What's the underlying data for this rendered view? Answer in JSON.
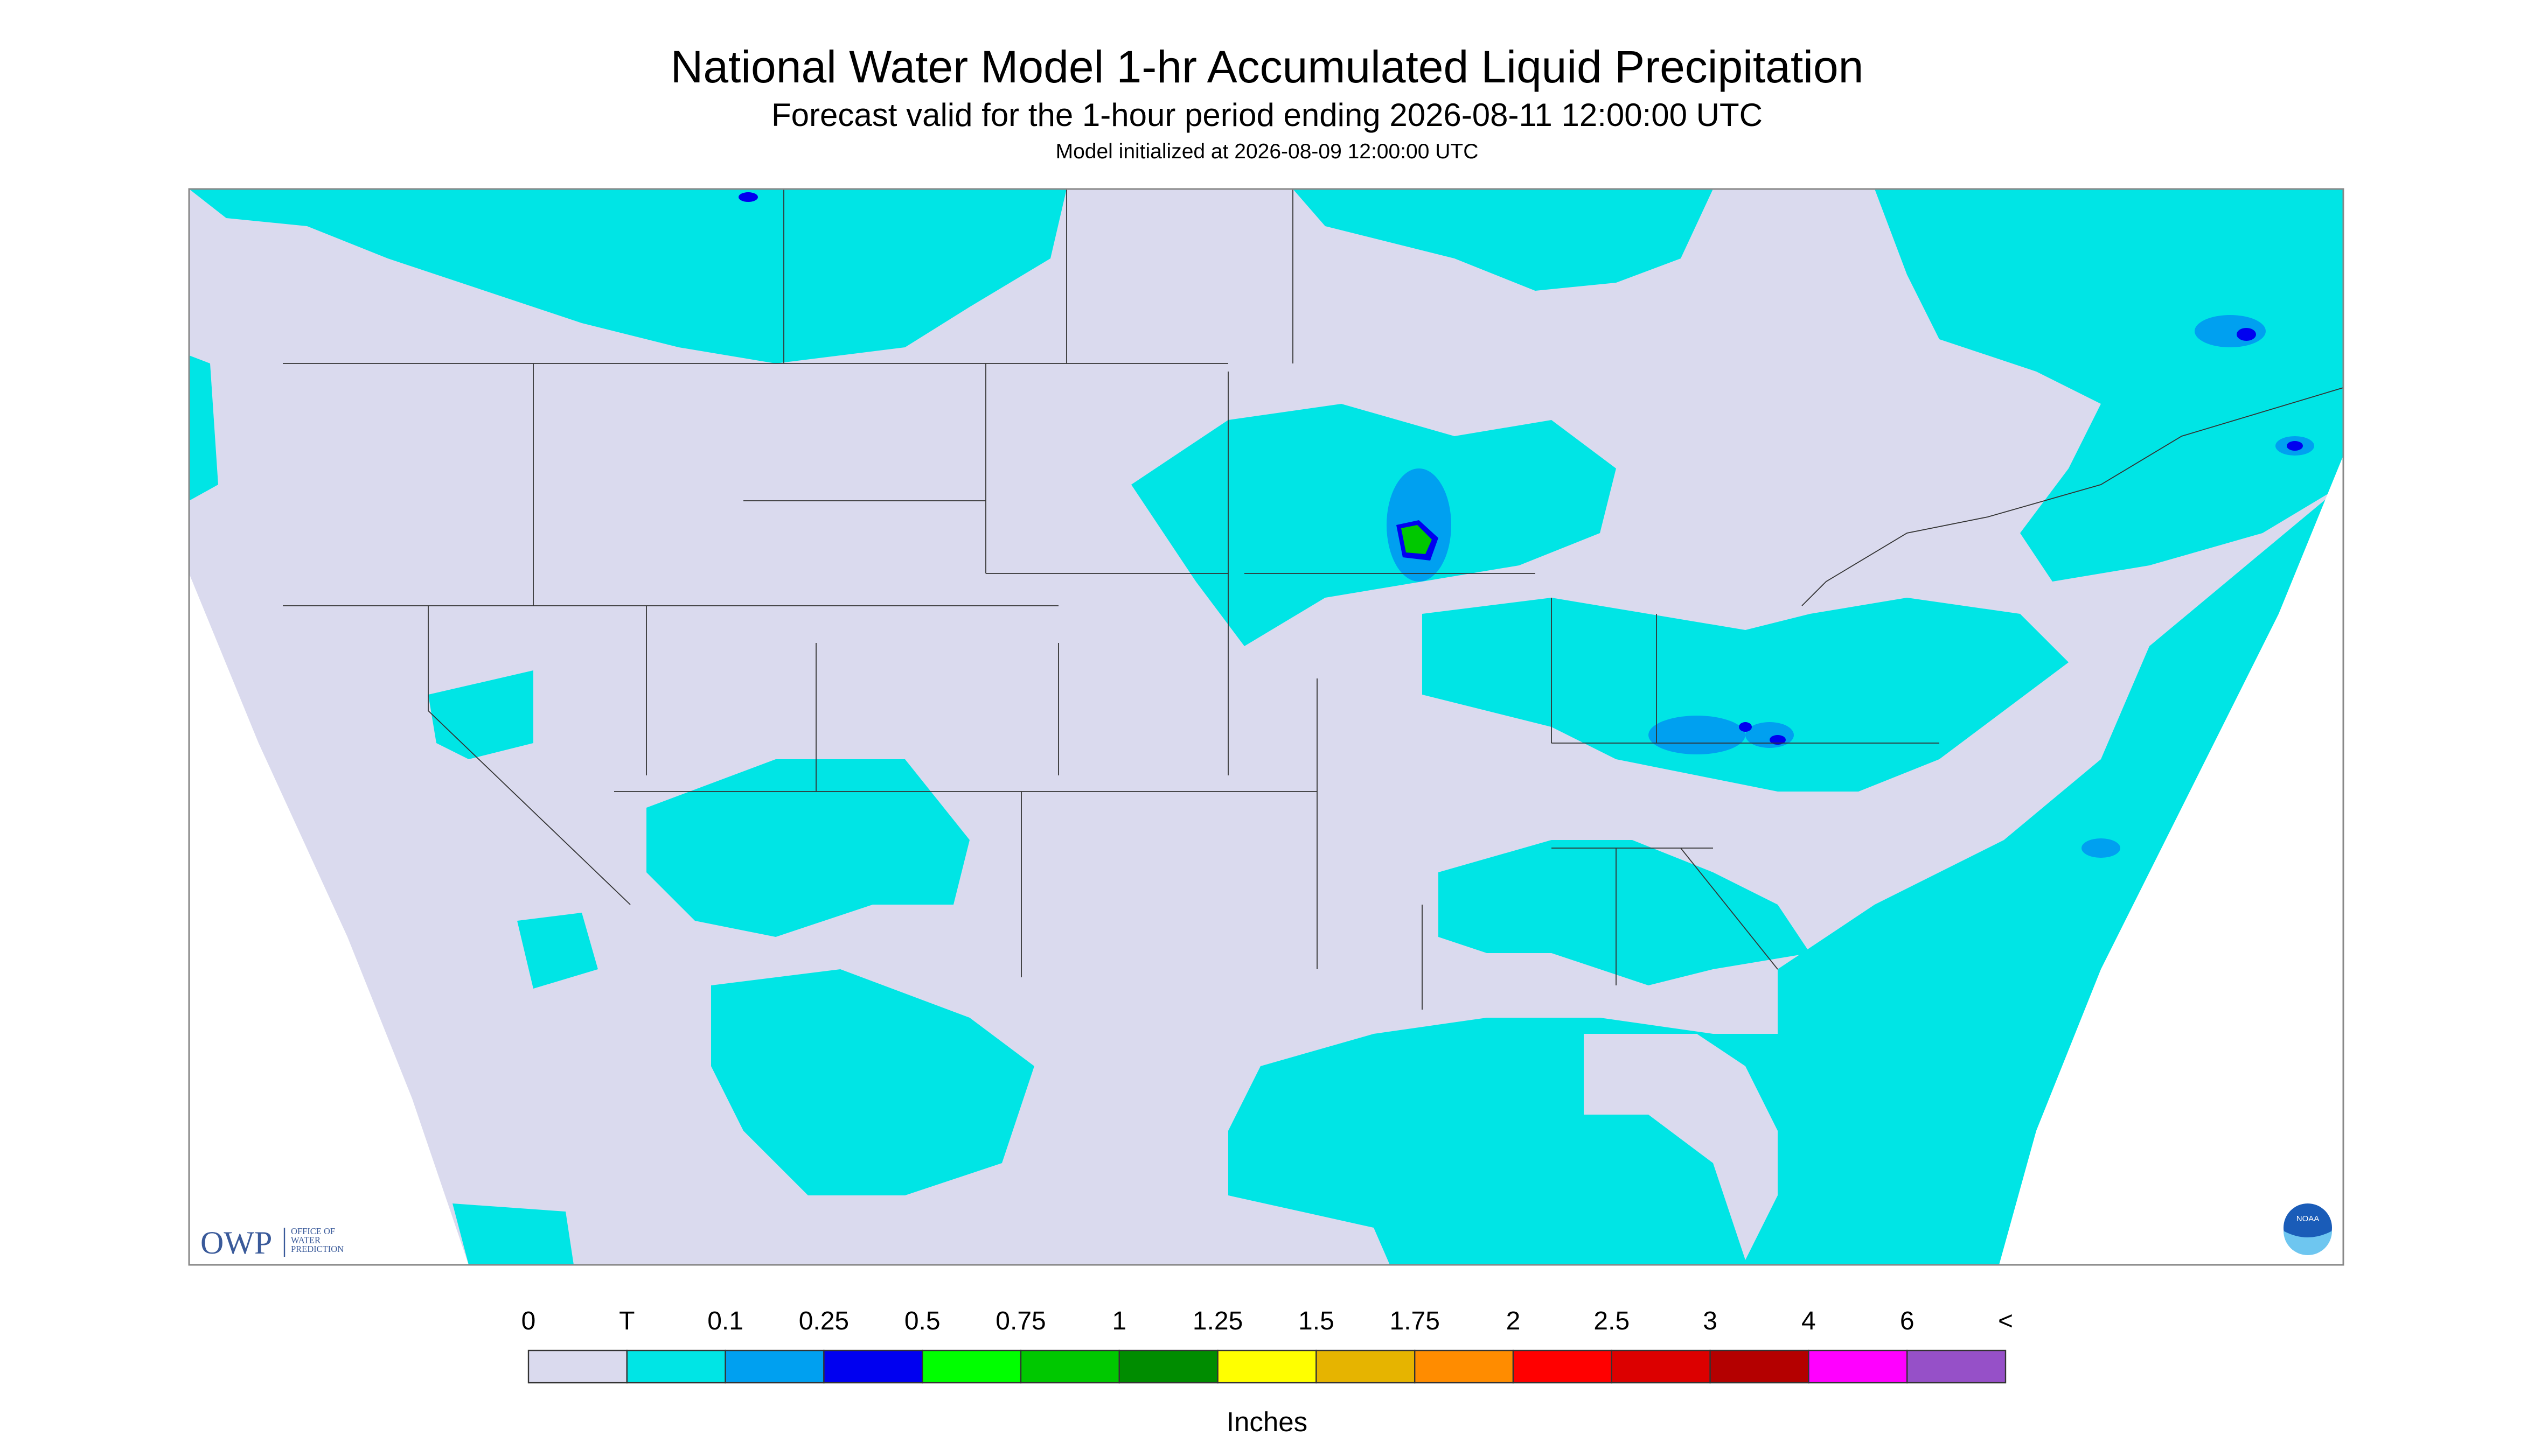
{
  "header": {
    "title": "National Water Model 1-hr Accumulated Liquid Precipitation",
    "subtitle": "Forecast valid for the 1-hour period ending 2026-08-11 12:00:00 UTC",
    "init": "Model initialized at 2026-08-09 12:00:00 UTC"
  },
  "logos": {
    "owp": "OWP",
    "owp_lines": [
      "OFFICE OF",
      "WATER",
      "PREDICTION"
    ],
    "noaa": "NOAA"
  },
  "legend": {
    "labels": [
      "0",
      "T",
      "0.1",
      "0.25",
      "0.5",
      "0.75",
      "1",
      "1.25",
      "1.5",
      "1.75",
      "2",
      "2.5",
      "3",
      "4",
      "6",
      "<"
    ],
    "colors": [
      "#dadaee",
      "#00e5e5",
      "#00a0f0",
      "#0000f0",
      "#00ff00",
      "#00c800",
      "#008c00",
      "#ffff00",
      "#e6b400",
      "#ff8c00",
      "#ff0000",
      "#dc0000",
      "#b40000",
      "#ff00ff",
      "#9650c8"
    ],
    "units": "Inches"
  }
}
